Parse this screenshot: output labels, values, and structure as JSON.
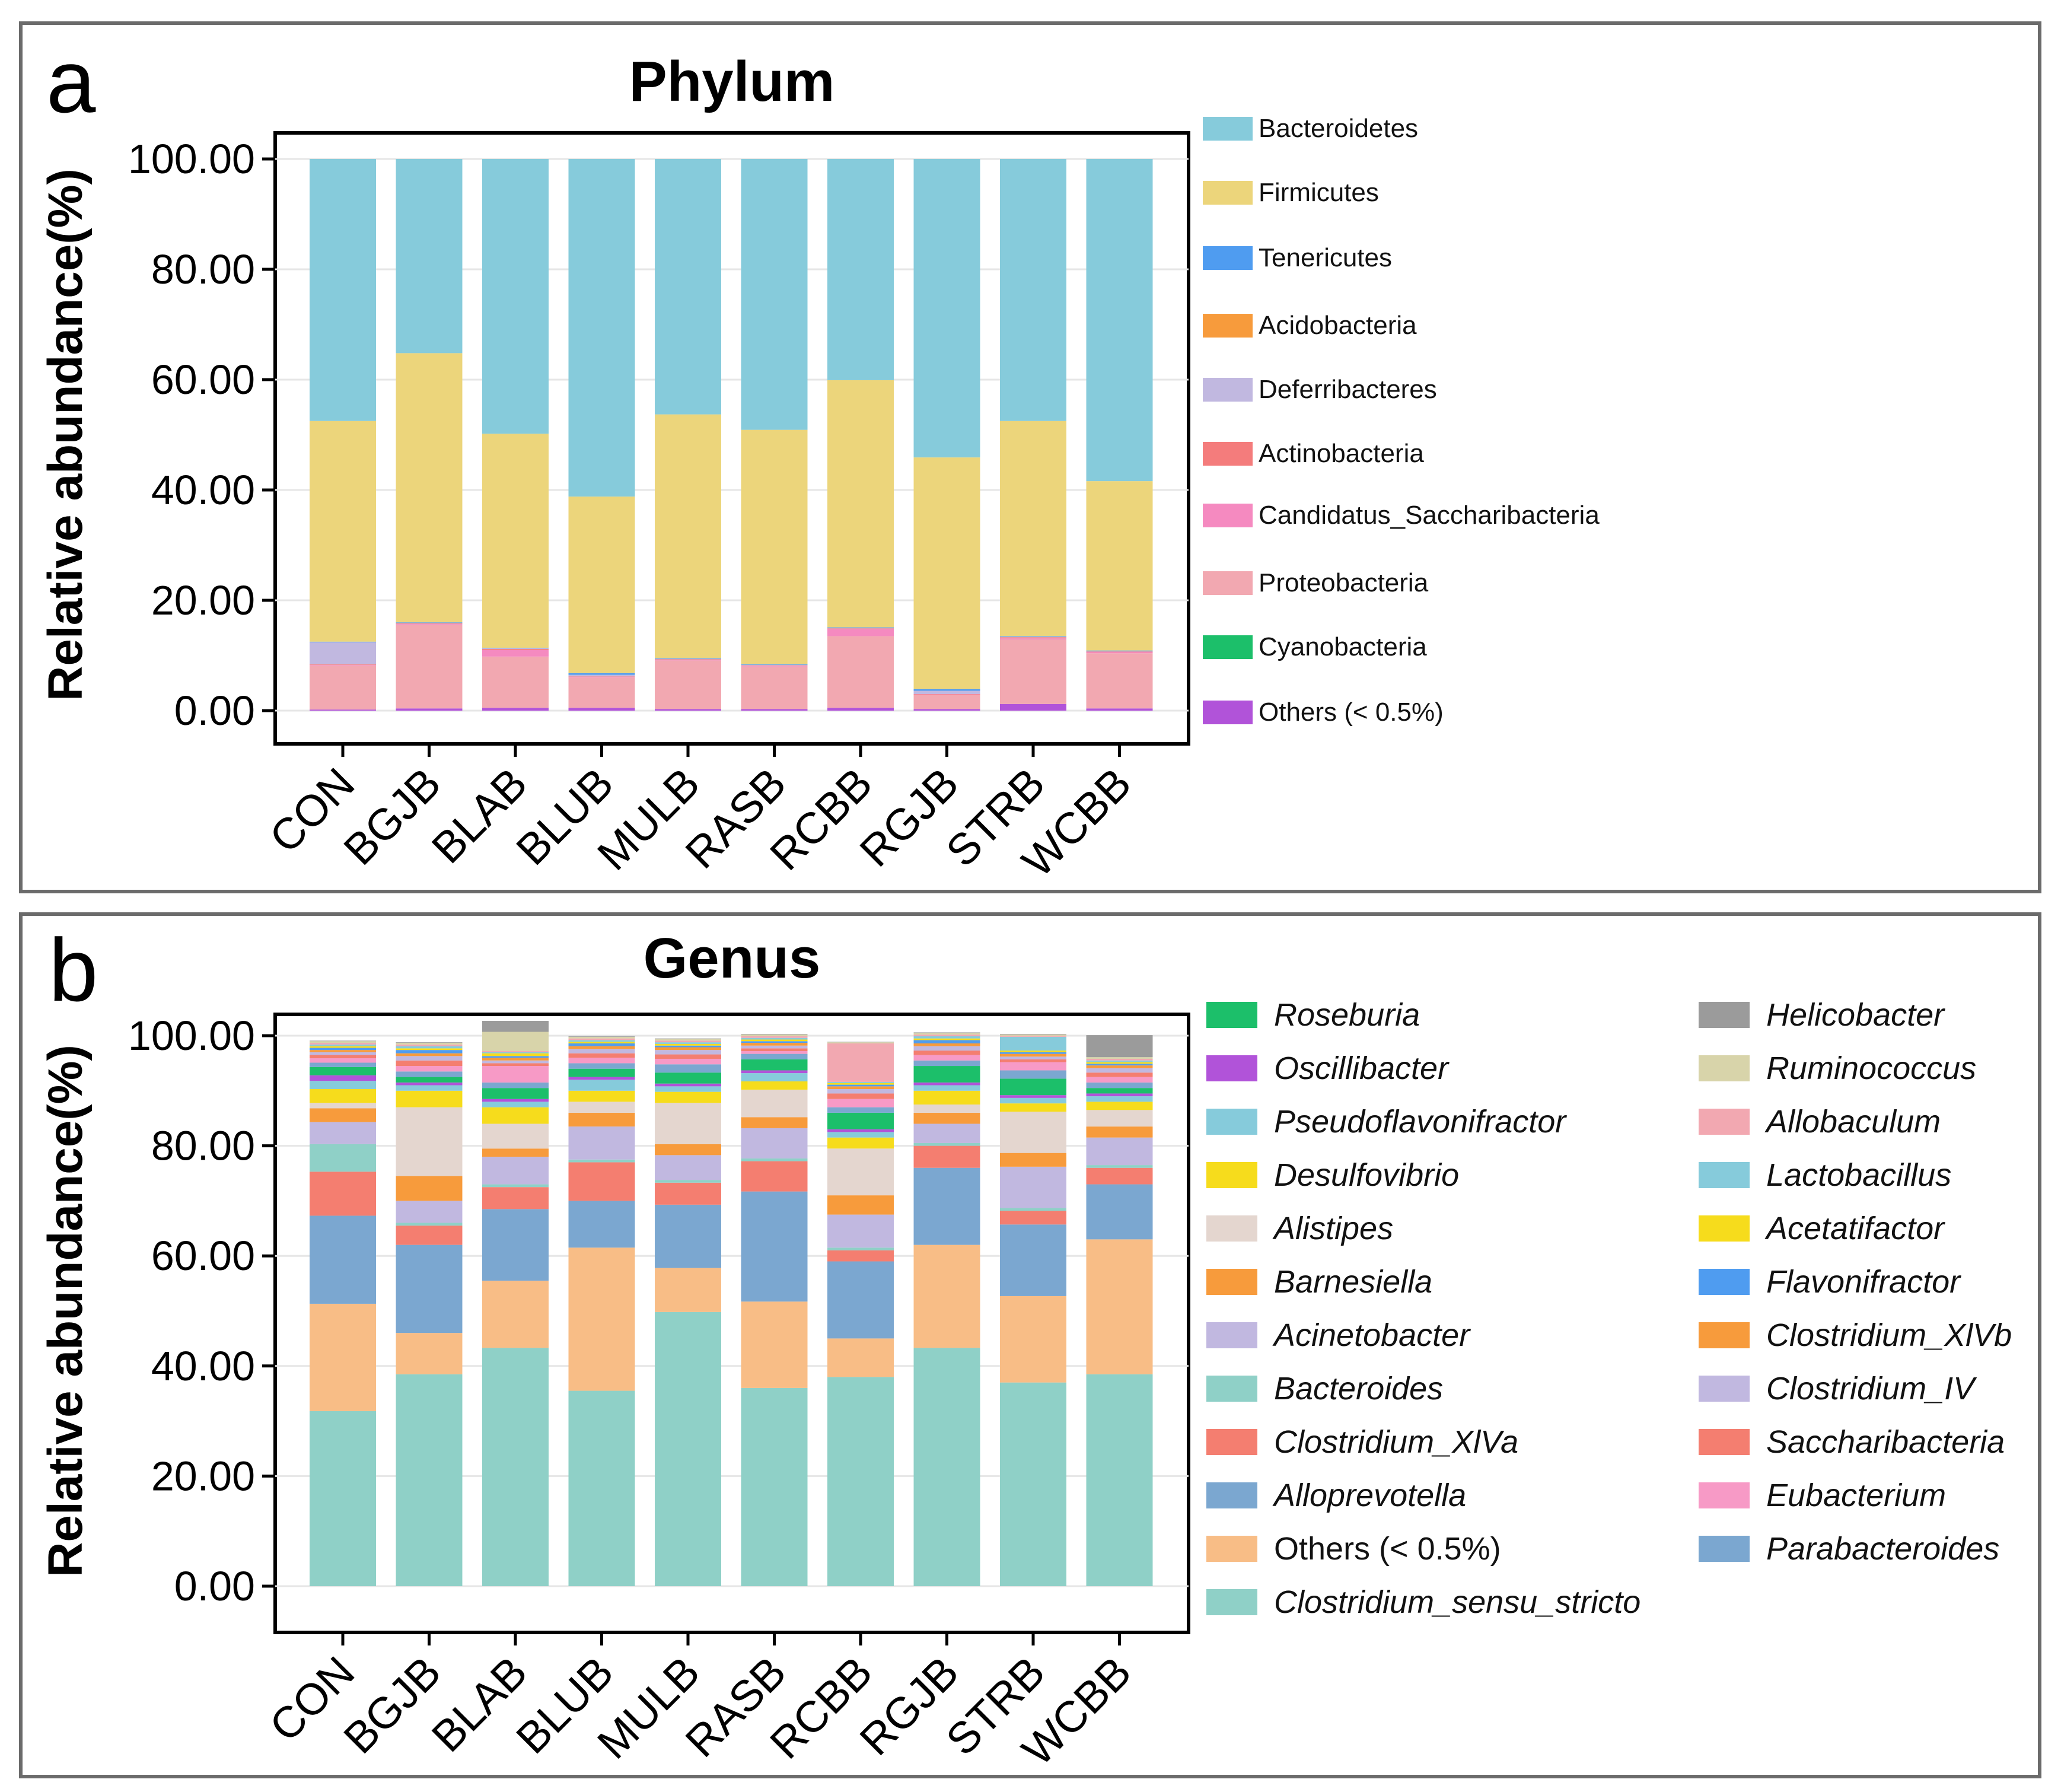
{
  "chart_data": [
    {
      "type": "bar",
      "stacked": true,
      "panel_label": "a",
      "title": "Phylum",
      "ylabel": "Relative abundance(%)",
      "xlabel": "",
      "ylim": [
        0,
        100
      ],
      "yticks": [
        "0.00",
        "20.00",
        "40.00",
        "60.00",
        "80.00",
        "100.00"
      ],
      "categories": [
        "CON",
        "BGJB",
        "BLAB",
        "BLUB",
        "MULB",
        "RASB",
        "RCBB",
        "RGJB",
        "STRB",
        "WCBB"
      ],
      "series": [
        {
          "name": "Others (< 0.5%)",
          "color": "#b153d9",
          "values": [
            0.2,
            0.4,
            0.5,
            0.5,
            0.3,
            0.3,
            0.5,
            0.3,
            1.2,
            0.4
          ]
        },
        {
          "name": "Cyanobacteria",
          "color": "#1cbf6a",
          "values": [
            0,
            0,
            0,
            0,
            0,
            0,
            0,
            0,
            0,
            0
          ]
        },
        {
          "name": "Proteobacteria",
          "color": "#f2a8b1",
          "values": [
            8.0,
            15.2,
            9.3,
            5.5,
            8.8,
            7.7,
            13.0,
            2.5,
            11.7,
            10.0
          ]
        },
        {
          "name": "Candidatus_Saccharibacteria",
          "color": "#f58ac0",
          "values": [
            0.1,
            0.1,
            1.2,
            0.1,
            0.1,
            0.1,
            1.3,
            0.1,
            0.2,
            0.2
          ]
        },
        {
          "name": "Actinobacteria",
          "color": "#f47c7c",
          "values": [
            0.1,
            0.1,
            0.2,
            0.1,
            0.1,
            0.1,
            0.1,
            0.1,
            0.2,
            0.1
          ]
        },
        {
          "name": "Deferribacteres",
          "color": "#c1b8e0",
          "values": [
            4.0,
            0.1,
            0.1,
            0.3,
            0.1,
            0.1,
            0.1,
            0.6,
            0.1,
            0.1
          ]
        },
        {
          "name": "Acidobacteria",
          "color": "#f79b3c",
          "values": [
            0,
            0,
            0,
            0,
            0,
            0,
            0,
            0,
            0,
            0
          ]
        },
        {
          "name": "Tenericutes",
          "color": "#4f9cf0",
          "values": [
            0.1,
            0.1,
            0.1,
            0.3,
            0.1,
            0.1,
            0.1,
            0.3,
            0.1,
            0.1
          ]
        },
        {
          "name": "Firmicutes",
          "color": "#ecd57b",
          "values": [
            40.0,
            48.8,
            38.8,
            32.0,
            44.2,
            42.5,
            44.8,
            42.0,
            39.0,
            30.7
          ]
        },
        {
          "name": "Bacteroidetes",
          "color": "#86cbdb",
          "values": [
            47.5,
            35.2,
            49.8,
            61.2,
            46.3,
            49.1,
            40.1,
            54.1,
            47.5,
            58.4
          ]
        }
      ],
      "legend": [
        "Bacteroidetes",
        "Firmicutes",
        "Tenericutes",
        "Acidobacteria",
        "Deferribacteres",
        "Actinobacteria",
        "Candidatus_Saccharibacteria",
        "Proteobacteria",
        "Cyanobacteria",
        "Others (< 0.5%)"
      ]
    },
    {
      "type": "bar",
      "stacked": true,
      "panel_label": "b",
      "title": "Genus",
      "ylabel": "Relative abundance(%)",
      "xlabel": "",
      "ylim": [
        0,
        100
      ],
      "yticks": [
        "0.00",
        "20.00",
        "40.00",
        "60.00",
        "80.00",
        "100.00"
      ],
      "categories": [
        "CON",
        "BGJB",
        "BLAB",
        "BLUB",
        "MULB",
        "RASB",
        "RCBB",
        "RGJB",
        "STRB",
        "WCBB"
      ],
      "series": [
        {
          "name": "Clostridium_sensu_stricto",
          "color": "#8fd0c7",
          "values": [
            31.8,
            38.5,
            43.3,
            35.5,
            49.8,
            36.0,
            38.0,
            43.3,
            37.0,
            38.5
          ]
        },
        {
          "name": "Others (< 0.5%)",
          "color": "#f8bd86",
          "values": [
            19.5,
            7.5,
            12.2,
            26.0,
            8.0,
            15.7,
            7.0,
            18.7,
            15.7,
            24.5
          ]
        },
        {
          "name": "Alloprevotella",
          "color": "#7ba7d0",
          "values": [
            16.0,
            16.0,
            13.0,
            8.5,
            11.5,
            20.0,
            14.0,
            14.0,
            13.0,
            10.0
          ]
        },
        {
          "name": "Clostridium_XlVa",
          "color": "#f47e70",
          "values": [
            8.0,
            3.5,
            4.0,
            7.0,
            4.0,
            5.5,
            2.0,
            4.0,
            2.5,
            3.0
          ]
        },
        {
          "name": "Bacteroides",
          "color": "#8fd0c7",
          "values": [
            5.0,
            0.5,
            0.5,
            0.5,
            0.5,
            0.5,
            0.5,
            0.5,
            0.5,
            0.5
          ]
        },
        {
          "name": "Acinetobacter",
          "color": "#c1b8e0",
          "values": [
            4.0,
            4.0,
            5.0,
            6.0,
            4.5,
            5.5,
            6.0,
            3.5,
            7.5,
            5.0
          ]
        },
        {
          "name": "Barnesiella",
          "color": "#f79b3c",
          "values": [
            2.5,
            4.5,
            1.5,
            2.5,
            2.0,
            2.0,
            3.5,
            2.0,
            2.5,
            2.0
          ]
        },
        {
          "name": "Alistipes",
          "color": "#e4d6cf",
          "values": [
            1.0,
            12.5,
            4.5,
            2.0,
            7.5,
            5.0,
            8.5,
            1.5,
            7.5,
            3.0
          ]
        },
        {
          "name": "Desulfovibrio",
          "color": "#f6dc1c",
          "values": [
            2.5,
            3.0,
            3.0,
            2.0,
            2.0,
            1.5,
            2.0,
            2.5,
            1.5,
            1.5
          ]
        },
        {
          "name": "Pseudoflavonifractor",
          "color": "#86cbdb",
          "values": [
            1.5,
            1.0,
            1.0,
            2.0,
            1.0,
            1.5,
            1.0,
            1.0,
            1.0,
            1.0
          ]
        },
        {
          "name": "Oscillibacter",
          "color": "#b153d9",
          "values": [
            1.0,
            0.5,
            0.5,
            0.5,
            0.5,
            0.5,
            0.5,
            0.5,
            0.5,
            0.5
          ]
        },
        {
          "name": "Roseburia",
          "color": "#1cbf6a",
          "values": [
            1.5,
            1.0,
            2.0,
            1.5,
            2.0,
            2.0,
            3.0,
            3.0,
            3.0,
            1.0
          ]
        },
        {
          "name": "Parabacteroides",
          "color": "#7ba7d0",
          "values": [
            0.8,
            1.0,
            1.0,
            1.0,
            1.5,
            1.0,
            1.0,
            1.0,
            1.5,
            1.0
          ]
        },
        {
          "name": "Eubacterium",
          "color": "#f79ac6",
          "values": [
            0.8,
            1.0,
            3.0,
            1.0,
            1.0,
            0.5,
            1.5,
            1.0,
            1.5,
            1.0
          ]
        },
        {
          "name": "Saccharibacteria",
          "color": "#f47e70",
          "values": [
            0.6,
            1.0,
            0.5,
            0.8,
            0.8,
            0.5,
            1.0,
            0.8,
            0.5,
            0.8
          ]
        },
        {
          "name": "Clostridium_IV",
          "color": "#c1b8e0",
          "values": [
            0.5,
            0.8,
            0.5,
            0.8,
            0.8,
            0.5,
            0.8,
            0.8,
            0.5,
            0.8
          ]
        },
        {
          "name": "Clostridium_XlVb",
          "color": "#f79b3c",
          "values": [
            0.4,
            0.5,
            0.5,
            0.5,
            0.5,
            0.5,
            0.5,
            0.5,
            0.5,
            0.5
          ]
        },
        {
          "name": "Flavonifractor",
          "color": "#4f9cf0",
          "values": [
            0.4,
            0.6,
            0.3,
            0.5,
            0.3,
            0.3,
            0.3,
            0.6,
            0.3,
            0.3
          ]
        },
        {
          "name": "Acetatifactor",
          "color": "#f6dc1c",
          "values": [
            0.3,
            0.3,
            0.5,
            0.3,
            0.3,
            0.3,
            0.3,
            0.3,
            0.3,
            0.3
          ]
        },
        {
          "name": "Lactobacillus",
          "color": "#86cbdb",
          "values": [
            0.3,
            0.4,
            0.2,
            0.3,
            0.3,
            0.3,
            0.2,
            0.4,
            2.5,
            0.3
          ]
        },
        {
          "name": "Allobaculum",
          "color": "#f2a8b1",
          "values": [
            0.3,
            0.3,
            0.2,
            0.3,
            0.3,
            0.3,
            7.0,
            0.3,
            0.2,
            0.3
          ]
        },
        {
          "name": "Ruminococcus",
          "color": "#d8d4aa",
          "values": [
            0.3,
            0.3,
            3.5,
            0.3,
            0.3,
            0.3,
            0.2,
            0.3,
            0.2,
            0.3
          ]
        },
        {
          "name": "Helicobacter",
          "color": "#9b9b9b",
          "values": [
            0.1,
            0.1,
            2.0,
            0.1,
            0.1,
            0.1,
            0.1,
            0.1,
            0.1,
            4.0
          ]
        }
      ],
      "legend_col1": [
        {
          "name": "Roseburia",
          "color": "#1cbf6a",
          "italic": true
        },
        {
          "name": "Oscillibacter",
          "color": "#b153d9",
          "italic": true
        },
        {
          "name": "Pseudoflavonifractor",
          "color": "#86cbdb",
          "italic": true
        },
        {
          "name": "Desulfovibrio",
          "color": "#f6dc1c",
          "italic": true
        },
        {
          "name": "Alistipes",
          "color": "#e4d6cf",
          "italic": true
        },
        {
          "name": "Barnesiella",
          "color": "#f79b3c",
          "italic": true
        },
        {
          "name": "Acinetobacter",
          "color": "#c1b8e0",
          "italic": true
        },
        {
          "name": "Bacteroides",
          "color": "#8fd0c7",
          "italic": true
        },
        {
          "name": "Clostridium_XlVa",
          "color": "#f47e70",
          "italic": true
        },
        {
          "name": "Alloprevotella",
          "color": "#7ba7d0",
          "italic": true
        },
        {
          "name": "Others (< 0.5%)",
          "color": "#f8bd86",
          "italic": false
        },
        {
          "name": "Clostridium_sensu_stricto",
          "color": "#8fd0c7",
          "italic": true
        }
      ],
      "legend_col2": [
        {
          "name": "Helicobacter",
          "color": "#9b9b9b",
          "italic": true
        },
        {
          "name": "Ruminococcus",
          "color": "#d8d4aa",
          "italic": true
        },
        {
          "name": "Allobaculum",
          "color": "#f2a8b1",
          "italic": true
        },
        {
          "name": "Lactobacillus",
          "color": "#86cbdb",
          "italic": true
        },
        {
          "name": "Acetatifactor",
          "color": "#f6dc1c",
          "italic": true
        },
        {
          "name": "Flavonifractor",
          "color": "#4f9cf0",
          "italic": true
        },
        {
          "name": "Clostridium_XlVb",
          "color": "#f79b3c",
          "italic": true
        },
        {
          "name": "Clostridium_IV",
          "color": "#c1b8e0",
          "italic": true
        },
        {
          "name": "Saccharibacteria",
          "color": "#f47e70",
          "italic": true
        },
        {
          "name": "Eubacterium",
          "color": "#f79ac6",
          "italic": true
        },
        {
          "name": "Parabacteroides",
          "color": "#7ba7d0",
          "italic": true
        }
      ]
    }
  ],
  "legend_colors_a": {
    "Bacteroidetes": "#86cbdb",
    "Firmicutes": "#ecd57b",
    "Tenericutes": "#4f9cf0",
    "Acidobacteria": "#f79b3c",
    "Deferribacteres": "#c1b8e0",
    "Actinobacteria": "#f47c7c",
    "Candidatus_Saccharibacteria": "#f58ac0",
    "Proteobacteria": "#f2a8b1",
    "Cyanobacteria": "#1cbf6a",
    "Others (< 0.5%)": "#b153d9"
  }
}
